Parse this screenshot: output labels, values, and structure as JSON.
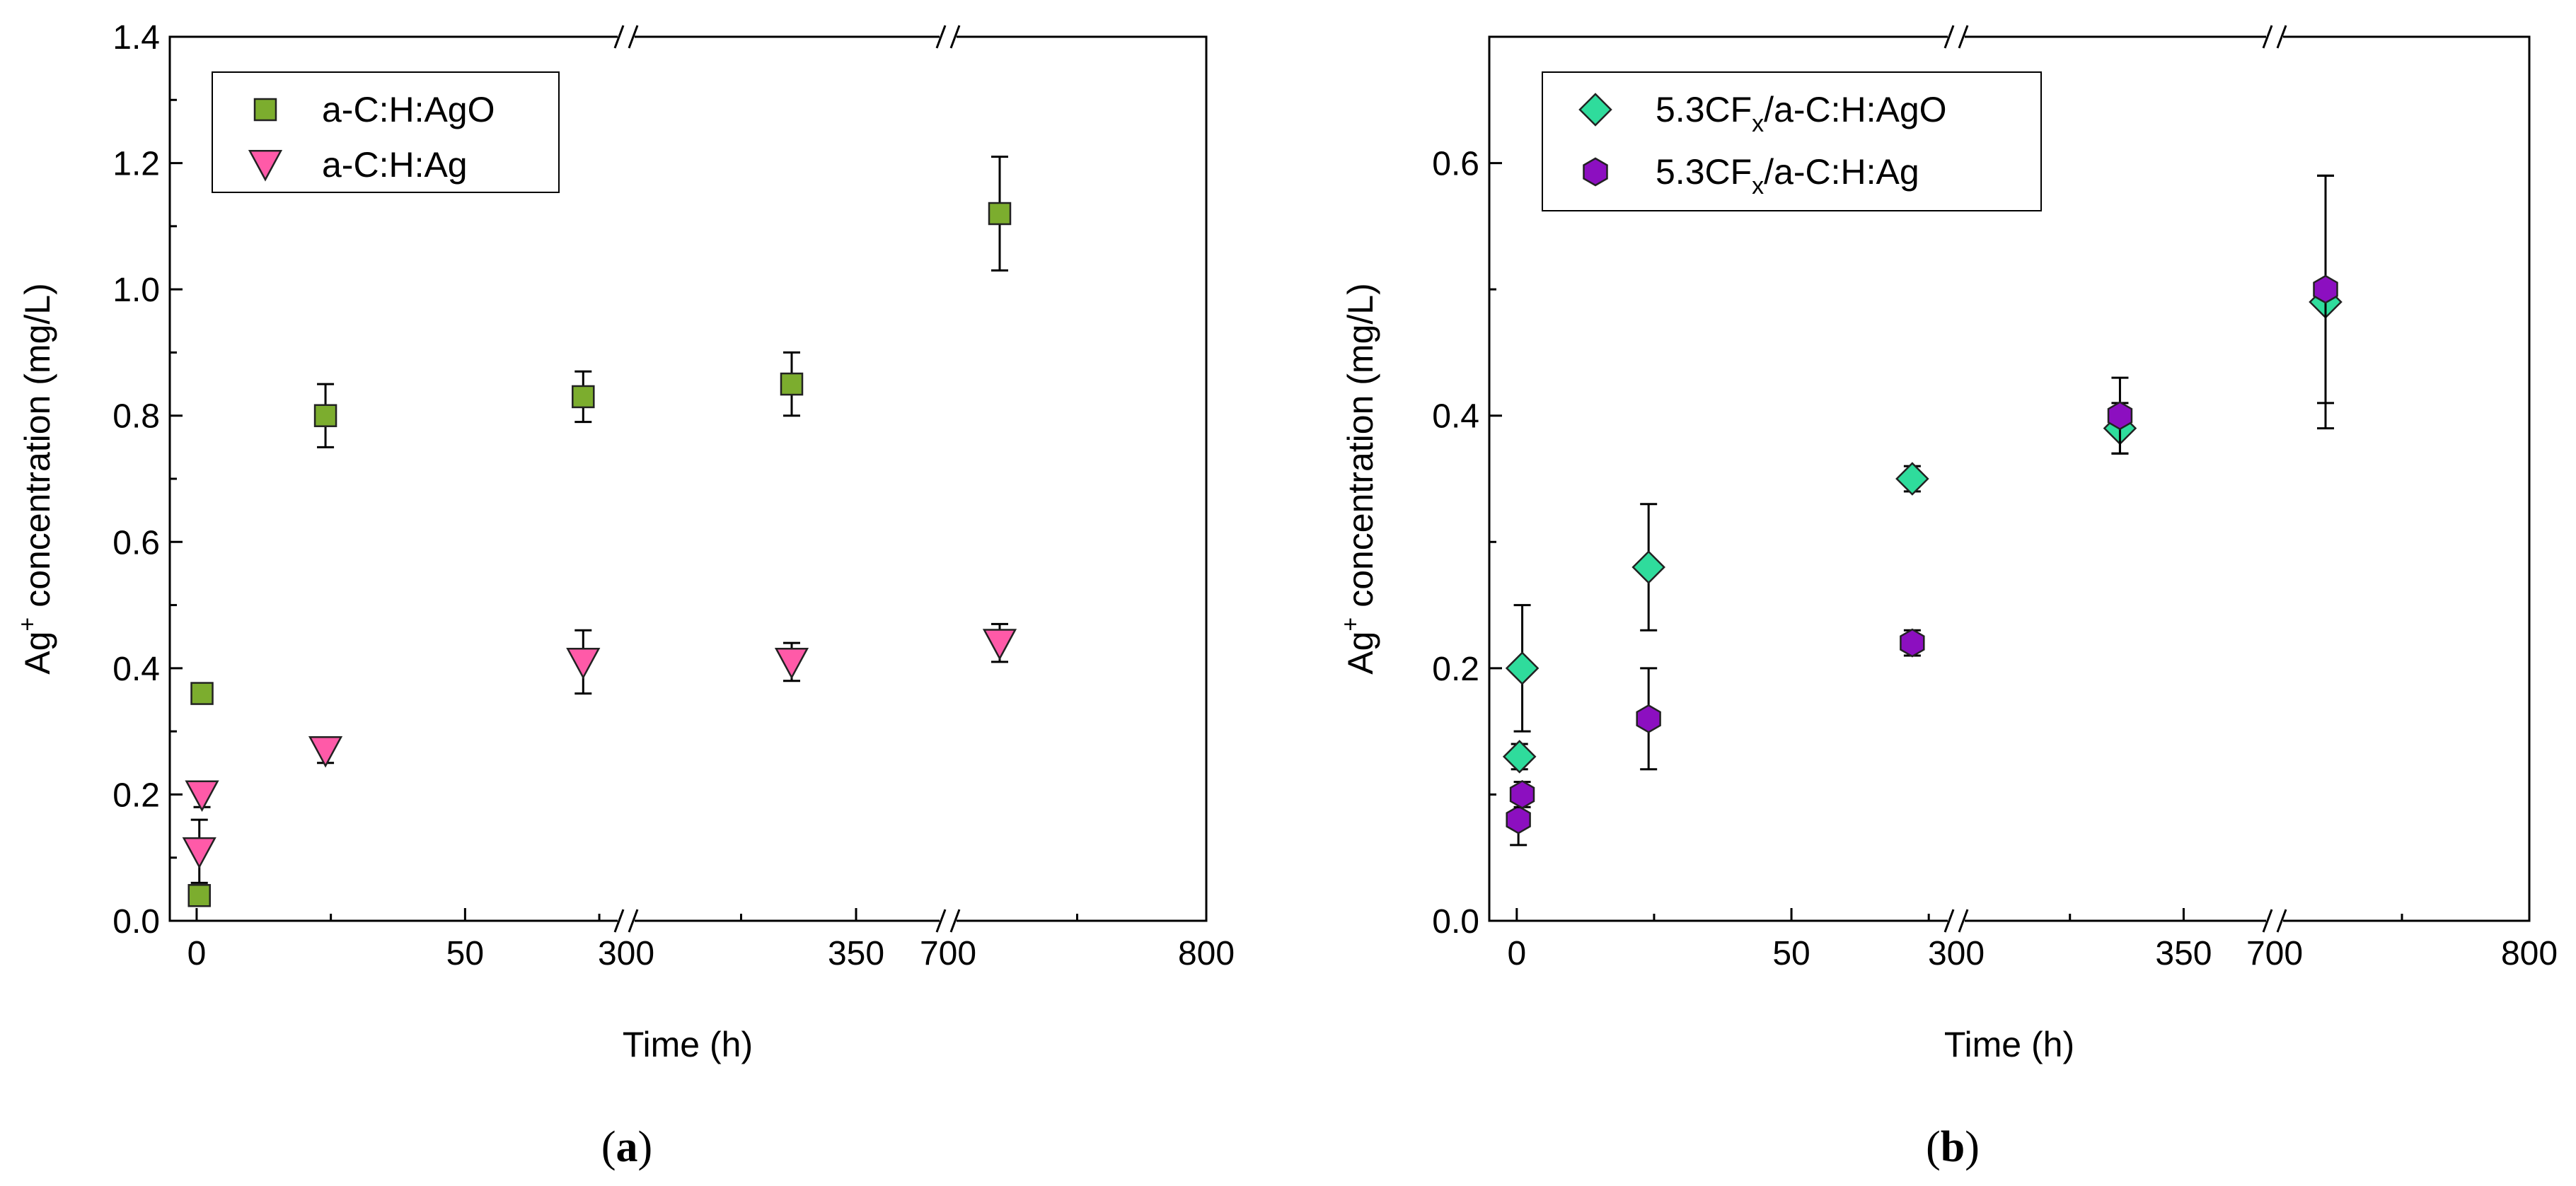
{
  "chart_data": [
    {
      "type": "scatter",
      "panel": "a",
      "caption_open": "(",
      "caption_letter": "a",
      "caption_close": ")",
      "xlabel": "Time (h)",
      "ylabel_main": "Ag",
      "ylabel_sup": "+",
      "ylabel_rest": " concentration (mg/L)",
      "ylim": [
        0,
        1.4
      ],
      "y_major_ticks": [
        0.0,
        0.2,
        0.4,
        0.6,
        0.8,
        1.0,
        1.2,
        1.4
      ],
      "y_tick_labels": [
        "0.0",
        "0.2",
        "0.4",
        "0.6",
        "0.8",
        "1.0",
        "1.2",
        "1.4"
      ],
      "x_axis_breaks": [
        "between 50-ish segment and 300",
        "between 350-ish segment and 700"
      ],
      "x_tick_labels": [
        "0",
        "50",
        "300",
        "350",
        "700",
        "800"
      ],
      "legend_position": "top-left",
      "series": [
        {
          "name": "a-C:H:AgO",
          "marker": "square",
          "color": "#7cad2e",
          "points": [
            {
              "t": 0.5,
              "y": 0.04,
              "err": 0.01
            },
            {
              "t": 1,
              "y": 0.36,
              "err": 0.01
            },
            {
              "t": 24,
              "y": 0.8,
              "err": 0.05
            },
            {
              "t": 72,
              "y": 0.83,
              "err": 0.04
            },
            {
              "t": 336,
              "y": 0.85,
              "err": 0.05
            },
            {
              "t": 720,
              "y": 1.12,
              "err": 0.09
            }
          ]
        },
        {
          "name": "a-C:H:Ag",
          "marker": "triangle-down",
          "color": "#ff5aa8",
          "points": [
            {
              "t": 0.5,
              "y": 0.11,
              "err": 0.05
            },
            {
              "t": 1,
              "y": 0.2,
              "err": 0.02
            },
            {
              "t": 24,
              "y": 0.27,
              "err": 0.02
            },
            {
              "t": 72,
              "y": 0.41,
              "err": 0.05
            },
            {
              "t": 336,
              "y": 0.41,
              "err": 0.03
            },
            {
              "t": 720,
              "y": 0.44,
              "err": 0.03
            }
          ]
        }
      ]
    },
    {
      "type": "scatter",
      "panel": "b",
      "caption_open": "(",
      "caption_letter": "b",
      "caption_close": ")",
      "xlabel": "Time (h)",
      "ylabel_main": "Ag",
      "ylabel_sup": "+",
      "ylabel_rest": " concentration (mg/L)",
      "ylim": [
        0,
        0.7
      ],
      "y_major_ticks": [
        0.0,
        0.2,
        0.4,
        0.6
      ],
      "y_tick_labels": [
        "0.0",
        "0.2",
        "0.4",
        "0.6"
      ],
      "x_tick_labels": [
        "0",
        "50",
        "300",
        "350",
        "700",
        "800"
      ],
      "legend_position": "top-left",
      "series": [
        {
          "name_main": "5.3CF",
          "name_sub": "x",
          "name_rest": "/a-C:H:AgO",
          "marker": "diamond",
          "color": "#2fdc9c",
          "points": [
            {
              "t": 0.5,
              "y": 0.13,
              "err": 0.01
            },
            {
              "t": 1,
              "y": 0.2,
              "err": 0.05
            },
            {
              "t": 24,
              "y": 0.28,
              "err": 0.05
            },
            {
              "t": 72,
              "y": 0.35,
              "err": 0.01
            },
            {
              "t": 336,
              "y": 0.39,
              "err": 0.02
            },
            {
              "t": 720,
              "y": 0.49,
              "err": 0.1
            }
          ]
        },
        {
          "name_main": "5.3CF",
          "name_sub": "x",
          "name_rest": "/a-C:H:Ag",
          "marker": "hexagon",
          "color": "#8c0fc0",
          "points": [
            {
              "t": 0.3,
              "y": 0.08,
              "err": 0.02
            },
            {
              "t": 1,
              "y": 0.1,
              "err": 0.01
            },
            {
              "t": 24,
              "y": 0.16,
              "err": 0.04
            },
            {
              "t": 72,
              "y": 0.22,
              "err": 0.01
            },
            {
              "t": 336,
              "y": 0.4,
              "err": 0.03
            },
            {
              "t": 720,
              "y": 0.5,
              "err": 0.09
            }
          ]
        }
      ]
    }
  ]
}
